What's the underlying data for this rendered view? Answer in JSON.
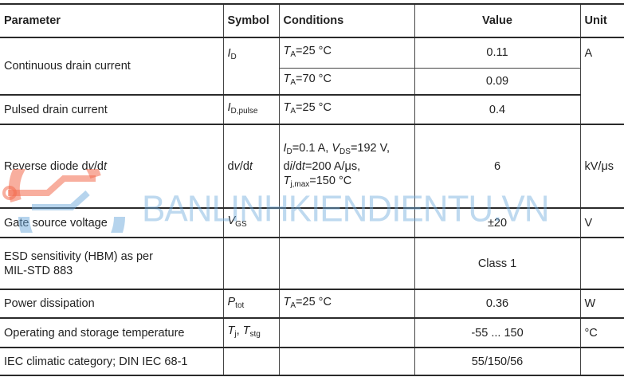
{
  "headers": {
    "parameter": "Parameter",
    "symbol": "Symbol",
    "conditions": "Conditions",
    "value": "Value",
    "unit": "Unit"
  },
  "rows": {
    "cont": {
      "parameter": "Continuous drain current",
      "symbol_main": "I",
      "symbol_sub": "D",
      "cond1_main": "T",
      "cond1_sub": "A",
      "cond1_rest": "=25 °C",
      "value1": "0.11",
      "cond2_main": "T",
      "cond2_sub": "A",
      "cond2_rest": "=70 °C",
      "value2": "0.09",
      "unit": "A"
    },
    "pulsed": {
      "parameter": "Pulsed drain current",
      "symbol_main": "I",
      "symbol_sub": "D,pulse",
      "cond_main": "T",
      "cond_sub": "A",
      "cond_rest": "=25 °C",
      "value": "0.4"
    },
    "dvdt": {
      "parameter_a": "Reverse diode d",
      "parameter_b": "v",
      "parameter_c": "/d",
      "parameter_d": "t",
      "symbol_a": "d",
      "symbol_b": "v",
      "symbol_c": "/d",
      "symbol_d": "t",
      "c1": "I",
      "c1s": "D",
      "c1r": "=0.1 A, ",
      "c1b": "V",
      "c1bs": "DS",
      "c1br": "=192 V,",
      "c2a": "d",
      "c2b": "i",
      "c2c": "/d",
      "c2d": "t",
      "c2r": "=200 A/μs,",
      "c3": "T",
      "c3s": "j,max",
      "c3r": "=150 °C",
      "value": "6",
      "unit": "kV/μs"
    },
    "gate": {
      "parameter": "Gate source voltage",
      "symbol_main": "V",
      "symbol_sub": "GS",
      "value": "±20",
      "unit": "V"
    },
    "esd": {
      "parameter_l1": "ESD sensitivity (HBM) as per",
      "parameter_l2": "MIL-STD 883",
      "value": "Class 1"
    },
    "power": {
      "parameter": "Power dissipation",
      "symbol_main": "P",
      "symbol_sub": "tot",
      "cond_main": "T",
      "cond_sub": "A",
      "cond_rest": "=25 °C",
      "value": "0.36",
      "unit": "W"
    },
    "temp": {
      "parameter": "Operating and storage temperature",
      "s1": "T",
      "s1s": "j",
      "sep": ", ",
      "s2": "T",
      "s2s": "stg",
      "value": "-55 ... 150",
      "unit": "°C"
    },
    "iec": {
      "parameter": "IEC climatic category; DIN IEC 68-1",
      "value": "55/150/56"
    }
  },
  "watermark": {
    "text": "BANLINHKIENDIENTU.VN",
    "color": "#6eaadc",
    "logo_color": "#f26b4f"
  }
}
